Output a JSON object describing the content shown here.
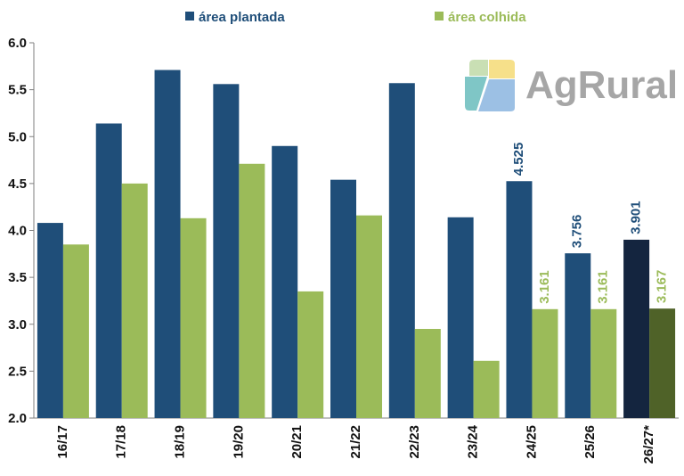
{
  "chart_data": {
    "type": "bar",
    "title": "",
    "xlabel": "",
    "ylabel": "",
    "ylim": [
      2.0,
      6.0
    ],
    "yticks": [
      "2.0",
      "2.5",
      "3.0",
      "3.5",
      "4.0",
      "4.5",
      "5.0",
      "5.5",
      "6.0"
    ],
    "grid": false,
    "legend_position": "top",
    "categories": [
      "16/17",
      "17/18",
      "18/19",
      "19/20",
      "20/21",
      "21/22",
      "22/23",
      "23/24",
      "24/25",
      "25/26",
      "26/27*"
    ],
    "series": [
      {
        "name": "área plantada",
        "color": "#1f4e79",
        "highlight_color": "#14253f",
        "values": [
          4.08,
          5.14,
          5.71,
          5.56,
          4.9,
          4.54,
          5.57,
          4.14,
          4.525,
          3.756,
          3.901
        ],
        "labels": [
          "",
          "",
          "",
          "",
          "",
          "",
          "",
          "",
          "4.525",
          "3.756",
          "3.901"
        ]
      },
      {
        "name": "área colhida",
        "color": "#9bbb59",
        "highlight_color": "#4f6228",
        "values": [
          3.85,
          4.5,
          4.13,
          4.71,
          3.35,
          4.16,
          2.95,
          2.61,
          3.161,
          3.161,
          3.167
        ],
        "labels": [
          "",
          "",
          "",
          "",
          "",
          "",
          "",
          "",
          "3.161",
          "3.161",
          "3.167"
        ]
      }
    ],
    "highlight_last": true
  },
  "logo": {
    "text": "AgRural"
  }
}
